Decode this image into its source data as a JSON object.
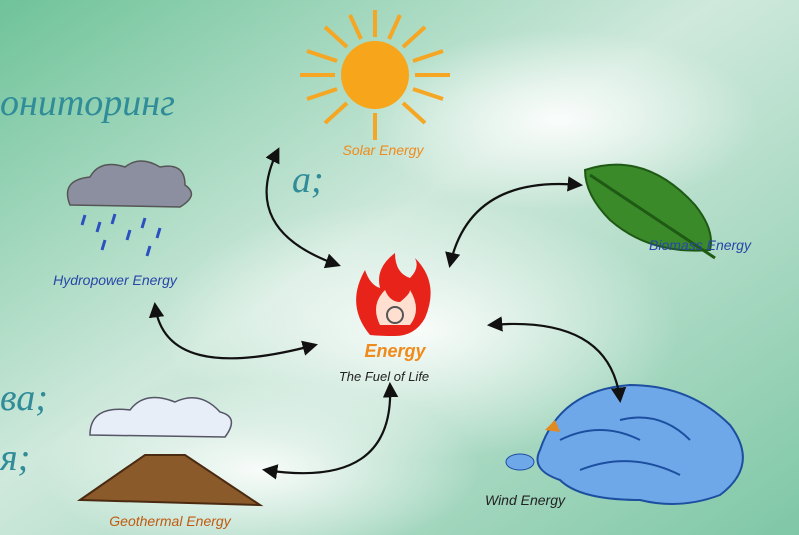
{
  "slide_text": [
    "ониторинг",
    "а;",
    "ва;",
    "я;"
  ],
  "center": {
    "title": "Energy",
    "subtitle": "The Fuel of Life"
  },
  "nodes": [
    {
      "label": "Solar Energy"
    },
    {
      "label": "Hydropower Energy"
    },
    {
      "label": "Biomass Energy"
    },
    {
      "label": "Geothermal Energy"
    },
    {
      "label": "Wind Energy"
    }
  ]
}
